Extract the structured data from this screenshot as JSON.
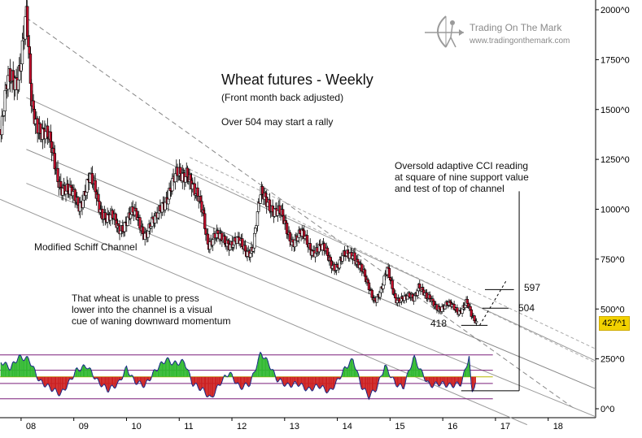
{
  "chart_data": {
    "type": "candlestick",
    "title": "Wheat futures - Weekly",
    "subtitle": "(Front month back adjusted)",
    "x_tick_labels": [
      "08",
      "09",
      "10",
      "11",
      "12",
      "13",
      "14",
      "15",
      "16",
      "17",
      "18"
    ],
    "y_tick_labels": [
      "2000^0",
      "1750^0",
      "1500^0",
      "1250^0",
      "1000^0",
      "750^0",
      "500^0",
      "250^0",
      "0^0"
    ],
    "y_ticks": [
      2000,
      1750,
      1500,
      1250,
      1000,
      750,
      500,
      250,
      0
    ],
    "ylim": [
      0,
      2000
    ],
    "xlim": [
      2007.6,
      2018.9
    ],
    "last_price_label": "427^1",
    "price_path": [
      [
        2007.62,
        1400
      ],
      [
        2007.75,
        1600
      ],
      [
        2007.95,
        1720
      ],
      [
        2008.1,
        1920
      ],
      [
        2008.2,
        1500
      ],
      [
        2008.35,
        1450
      ],
      [
        2008.55,
        1300
      ],
      [
        2008.75,
        1150
      ],
      [
        2008.9,
        1060
      ],
      [
        2009.1,
        1050
      ],
      [
        2009.3,
        1130
      ],
      [
        2009.45,
        1060
      ],
      [
        2009.65,
        950
      ],
      [
        2009.85,
        910
      ],
      [
        2010.0,
        960
      ],
      [
        2010.2,
        950
      ],
      [
        2010.35,
        900
      ],
      [
        2010.55,
        920
      ],
      [
        2010.7,
        1060
      ],
      [
        2010.9,
        1120
      ],
      [
        2011.05,
        1180
      ],
      [
        2011.15,
        1230
      ],
      [
        2011.3,
        1050
      ],
      [
        2011.45,
        1000
      ],
      [
        2011.55,
        850
      ],
      [
        2011.75,
        840
      ],
      [
        2011.9,
        860
      ],
      [
        2012.1,
        820
      ],
      [
        2012.25,
        800
      ],
      [
        2012.4,
        820
      ],
      [
        2012.55,
        1050
      ],
      [
        2012.7,
        1060
      ],
      [
        2012.85,
        980
      ],
      [
        2013.0,
        920
      ],
      [
        2013.15,
        860
      ],
      [
        2013.35,
        850
      ],
      [
        2013.55,
        810
      ],
      [
        2013.75,
        780
      ],
      [
        2014.0,
        720
      ],
      [
        2014.2,
        760
      ],
      [
        2014.3,
        800
      ],
      [
        2014.4,
        740
      ],
      [
        2014.55,
        620
      ],
      [
        2014.7,
        560
      ],
      [
        2014.85,
        600
      ],
      [
        2014.95,
        680
      ],
      [
        2015.1,
        570
      ],
      [
        2015.3,
        540
      ],
      [
        2015.45,
        560
      ],
      [
        2015.55,
        640
      ],
      [
        2015.7,
        540
      ],
      [
        2015.9,
        520
      ],
      [
        2016.1,
        510
      ],
      [
        2016.3,
        500
      ],
      [
        2016.45,
        530
      ],
      [
        2016.55,
        450
      ],
      [
        2016.65,
        430
      ]
    ],
    "cci_path": [
      [
        2007.62,
        0.7
      ],
      [
        2007.8,
        0.4
      ],
      [
        2007.95,
        0.9
      ],
      [
        2008.15,
        0.8
      ],
      [
        2008.35,
        -0.2
      ],
      [
        2008.55,
        -0.5
      ],
      [
        2008.75,
        -0.8
      ],
      [
        2008.9,
        -0.3
      ],
      [
        2009.05,
        0.3
      ],
      [
        2009.25,
        0.5
      ],
      [
        2009.45,
        -0.2
      ],
      [
        2009.65,
        -0.6
      ],
      [
        2009.85,
        -0.3
      ],
      [
        2010.0,
        0.4
      ],
      [
        2010.15,
        -0.2
      ],
      [
        2010.35,
        -0.4
      ],
      [
        2010.55,
        0.3
      ],
      [
        2010.75,
        0.8
      ],
      [
        2010.9,
        0.6
      ],
      [
        2011.1,
        0.7
      ],
      [
        2011.25,
        -0.3
      ],
      [
        2011.45,
        -0.6
      ],
      [
        2011.6,
        -1.0
      ],
      [
        2011.8,
        -0.2
      ],
      [
        2011.95,
        0.2
      ],
      [
        2012.15,
        -0.5
      ],
      [
        2012.35,
        -0.3
      ],
      [
        2012.55,
        1.1
      ],
      [
        2012.7,
        0.6
      ],
      [
        2012.85,
        -0.1
      ],
      [
        2013.05,
        -0.4
      ],
      [
        2013.25,
        -0.3
      ],
      [
        2013.45,
        -0.6
      ],
      [
        2013.65,
        -0.4
      ],
      [
        2013.85,
        -0.7
      ],
      [
        2014.0,
        -0.2
      ],
      [
        2014.15,
        0.4
      ],
      [
        2014.3,
        0.8
      ],
      [
        2014.45,
        -0.4
      ],
      [
        2014.6,
        -0.9
      ],
      [
        2014.75,
        -0.5
      ],
      [
        2014.9,
        0.5
      ],
      [
        2015.1,
        -0.3
      ],
      [
        2015.25,
        -0.5
      ],
      [
        2015.45,
        0.9
      ],
      [
        2015.6,
        0.2
      ],
      [
        2015.75,
        -0.4
      ],
      [
        2015.95,
        -0.3
      ],
      [
        2016.15,
        -0.4
      ],
      [
        2016.35,
        -0.3
      ],
      [
        2016.45,
        0.5
      ],
      [
        2016.5,
        0.95
      ],
      [
        2016.55,
        -0.8
      ],
      [
        2016.62,
        -0.2
      ]
    ],
    "annotations": [
      {
        "text": "Over 504 may start a rally"
      },
      {
        "text": "Oversold adaptive CCI reading\nat square of nine support value\nand test of top of channel"
      },
      {
        "text": "Modified Schiff Channel"
      },
      {
        "text": "That wheat is unable to press\nlower into the channel is a visual\ncue of waning downward momentum"
      },
      {
        "text": "597",
        "y": 597
      },
      {
        "text": "504",
        "y": 504
      },
      {
        "text": "418",
        "y": 418
      }
    ]
  },
  "branding": {
    "name": "Trading On The Mark",
    "url": "www.tradingonthemark.com"
  }
}
